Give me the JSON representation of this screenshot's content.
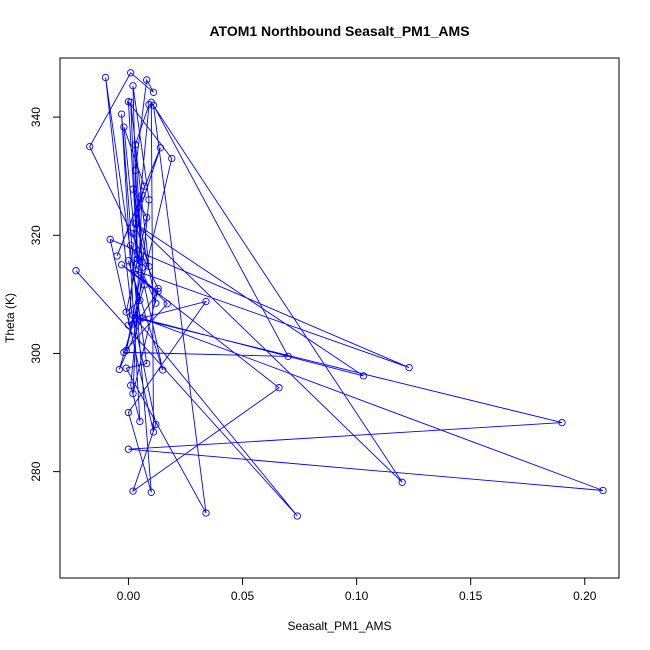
{
  "chart_data": {
    "type": "line",
    "title": "ATOM1 Northbound Seasalt_PM1_AMS",
    "xlabel": "Seasalt_PM1_AMS",
    "ylabel": "Theta (K)",
    "xlim": [
      -0.03,
      0.215
    ],
    "ylim": [
      262,
      350
    ],
    "x_ticks": [
      0.0,
      0.05,
      0.1,
      0.15,
      0.2
    ],
    "x_tick_labels": [
      "0.00",
      "0.05",
      "0.10",
      "0.15",
      "0.20"
    ],
    "y_ticks": [
      280,
      300,
      320,
      340
    ],
    "y_tick_labels": [
      "280",
      "300",
      "320",
      "340"
    ],
    "markers": "open-circle",
    "connected": true,
    "grid": false,
    "legend": "none",
    "color": "#0000ff",
    "series": [
      {
        "x": [
          -0.023,
          0.074,
          0.003,
          0.19,
          0.0,
          0.208,
          0.002,
          0.012,
          0.002,
          0.066,
          -0.003,
          0.013,
          0.005,
          0.103,
          0.003,
          0.12,
          0.01,
          0.011,
          -0.008,
          0.123,
          0.003,
          0.017,
          -0.002,
          0.07,
          0.011,
          0.034,
          -0.001,
          0.008,
          -0.01,
          0.002,
          0.007,
          -0.004,
          0.006,
          0.034,
          0.0,
          0.01,
          -0.003,
          0.005,
          0.001,
          0.009,
          0.002,
          0.004,
          0.0,
          0.019,
          -0.001,
          0.006,
          0.003,
          0.008,
          0.011,
          0.001,
          -0.017,
          0.013,
          0.002,
          0.006,
          -0.005,
          0.014,
          0.003,
          0.009,
          0.001,
          0.004,
          -0.002,
          0.007,
          0.002,
          0.015,
          0.0,
          0.005,
          -0.001,
          0.008,
          0.002,
          0.012,
          0.001,
          0.006,
          0.003,
          0.009,
          0.0
        ],
        "y": [
          314.0,
          272.5,
          306.0,
          288.3,
          283.8,
          276.8,
          306.5,
          288.0,
          276.7,
          294.2,
          315.0,
          310.5,
          306.0,
          296.2,
          322.0,
          278.2,
          342.5,
          286.7,
          319.3,
          297.6,
          314.0,
          308.4,
          300.2,
          299.5,
          342.0,
          273.0,
          297.5,
          298.3,
          346.7,
          305.0,
          311.6,
          297.3,
          306.0,
          308.8,
          290.0,
          276.5,
          340.5,
          288.5,
          294.6,
          326.0,
          345.3,
          316.0,
          342.6,
          333.0,
          300.5,
          314.5,
          331.0,
          346.3,
          344.2,
          347.5,
          335.0,
          311.0,
          293.2,
          326.8,
          316.5,
          334.8,
          322.0,
          314.7,
          342.5,
          315.2,
          338.3,
          328.3,
          320.3,
          297.2,
          315.7,
          309.0,
          307.0,
          323.0,
          327.8,
          308.5,
          318.3,
          315.5,
          335.3,
          342.1,
          304.8
        ]
      }
    ]
  }
}
